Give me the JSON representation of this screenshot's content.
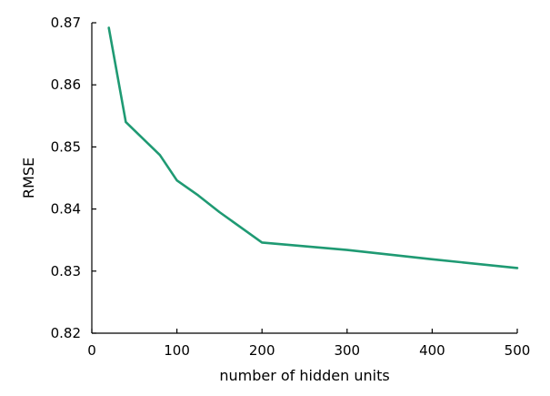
{
  "chart_data": {
    "type": "line",
    "title": "",
    "xlabel": "number of hidden units",
    "ylabel": "RMSE",
    "xlim": [
      0,
      500
    ],
    "ylim": [
      0.82,
      0.87
    ],
    "xticks": [
      0,
      100,
      200,
      300,
      400,
      500
    ],
    "xtick_labels": [
      "0",
      "100",
      "200",
      "300",
      "400",
      "500"
    ],
    "yticks": [
      0.82,
      0.83,
      0.84,
      0.85,
      0.86,
      0.87
    ],
    "ytick_labels": [
      "0.82",
      "0.83",
      "0.84",
      "0.85",
      "0.86",
      "0.87"
    ],
    "grid": false,
    "legend": "none",
    "series": [
      {
        "color": "#1f9a73",
        "x": [
          20,
          40,
          80,
          100,
          125,
          150,
          200,
          300,
          400,
          500
        ],
        "y": [
          0.8692,
          0.854,
          0.8487,
          0.8446,
          0.8422,
          0.8395,
          0.8346,
          0.8334,
          0.8319,
          0.8305
        ]
      }
    ]
  }
}
